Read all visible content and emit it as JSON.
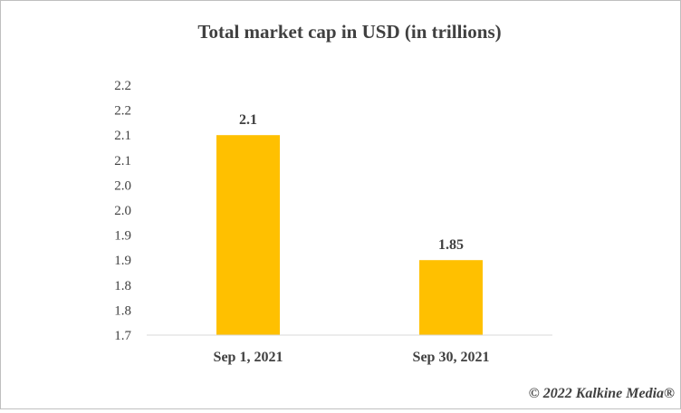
{
  "chart_data": {
    "type": "bar",
    "title": "Total market cap in USD (in trillions)",
    "categories": [
      "Sep 1, 2021",
      "Sep 30, 2021"
    ],
    "values": [
      2.1,
      1.85
    ],
    "data_labels": [
      "2.1",
      "1.85"
    ],
    "ylim": [
      1.7,
      2.2
    ],
    "y_ticks": [
      1.7,
      1.75,
      1.8,
      1.85,
      1.9,
      1.95,
      2.0,
      2.05,
      2.1,
      2.15,
      2.2
    ],
    "y_tick_labels": [
      "1.7",
      "1.8",
      "1.8",
      "1.9",
      "1.9",
      "2.0",
      "2.0",
      "2.1",
      "2.1",
      "2.2",
      "2.2"
    ],
    "xlabel": "",
    "ylabel": "",
    "grid": false,
    "legend": "none",
    "bar_color": "#FFC000"
  },
  "copyright": "© 2022 Kalkine Media®"
}
